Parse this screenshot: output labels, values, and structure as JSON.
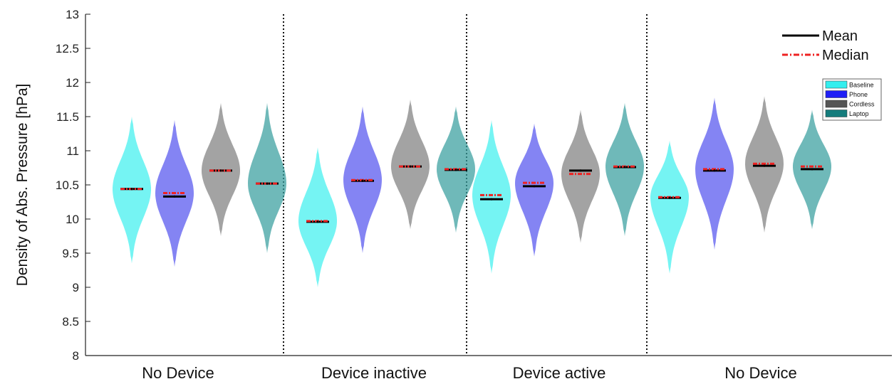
{
  "chart_data": {
    "type": "violin",
    "ylabel": "Density of Abs. Pressure [hPa]",
    "ylim": [
      8,
      13
    ],
    "yticks": [
      "8",
      "8.5",
      "9",
      "9.5",
      "10",
      "10.5",
      "11",
      "11.5",
      "12",
      "12.5",
      "13"
    ],
    "groups": [
      "No Device",
      "Device inactive",
      "Device active",
      "No Device"
    ],
    "stats_legend": [
      {
        "label": "Mean",
        "color": "#000000",
        "style": "solid"
      },
      {
        "label": "Median",
        "color": "#ee2222",
        "style": "dash-dot"
      }
    ],
    "series": [
      {
        "name": "Baseline",
        "color": "#40f0ee",
        "mean": [
          10.44,
          9.96,
          10.29,
          10.31
        ],
        "median": [
          10.44,
          9.97,
          10.35,
          10.32
        ],
        "min": [
          9.35,
          9.0,
          9.2,
          9.2
        ],
        "max": [
          11.5,
          11.05,
          11.45,
          11.15
        ]
      },
      {
        "name": "Phone",
        "color": "#5555ee",
        "mean": [
          10.33,
          10.56,
          10.48,
          10.71
        ],
        "median": [
          10.38,
          10.57,
          10.53,
          10.73
        ],
        "min": [
          9.3,
          9.5,
          9.45,
          9.55
        ],
        "max": [
          11.45,
          11.65,
          11.4,
          11.78
        ]
      },
      {
        "name": "Cordless",
        "color": "#7f7f7f",
        "mean": [
          10.71,
          10.77,
          10.71,
          10.78
        ],
        "median": [
          10.71,
          10.77,
          10.66,
          10.81
        ],
        "min": [
          9.75,
          9.85,
          9.65,
          9.8
        ],
        "max": [
          11.7,
          11.75,
          11.6,
          11.8
        ]
      },
      {
        "name": "Laptop",
        "color": "#389e9e",
        "mean": [
          10.52,
          10.72,
          10.76,
          10.73
        ],
        "median": [
          10.52,
          10.73,
          10.77,
          10.77
        ],
        "min": [
          9.5,
          9.8,
          9.75,
          9.85
        ],
        "max": [
          11.7,
          11.65,
          11.7,
          11.6
        ]
      }
    ],
    "legend": [
      {
        "label": "Baseline",
        "color": "#33eeee"
      },
      {
        "label": "Phone",
        "color": "#1f1ff5"
      },
      {
        "label": "Cordless",
        "color": "#555555"
      },
      {
        "label": "Laptop",
        "color": "#147c7c"
      }
    ]
  }
}
